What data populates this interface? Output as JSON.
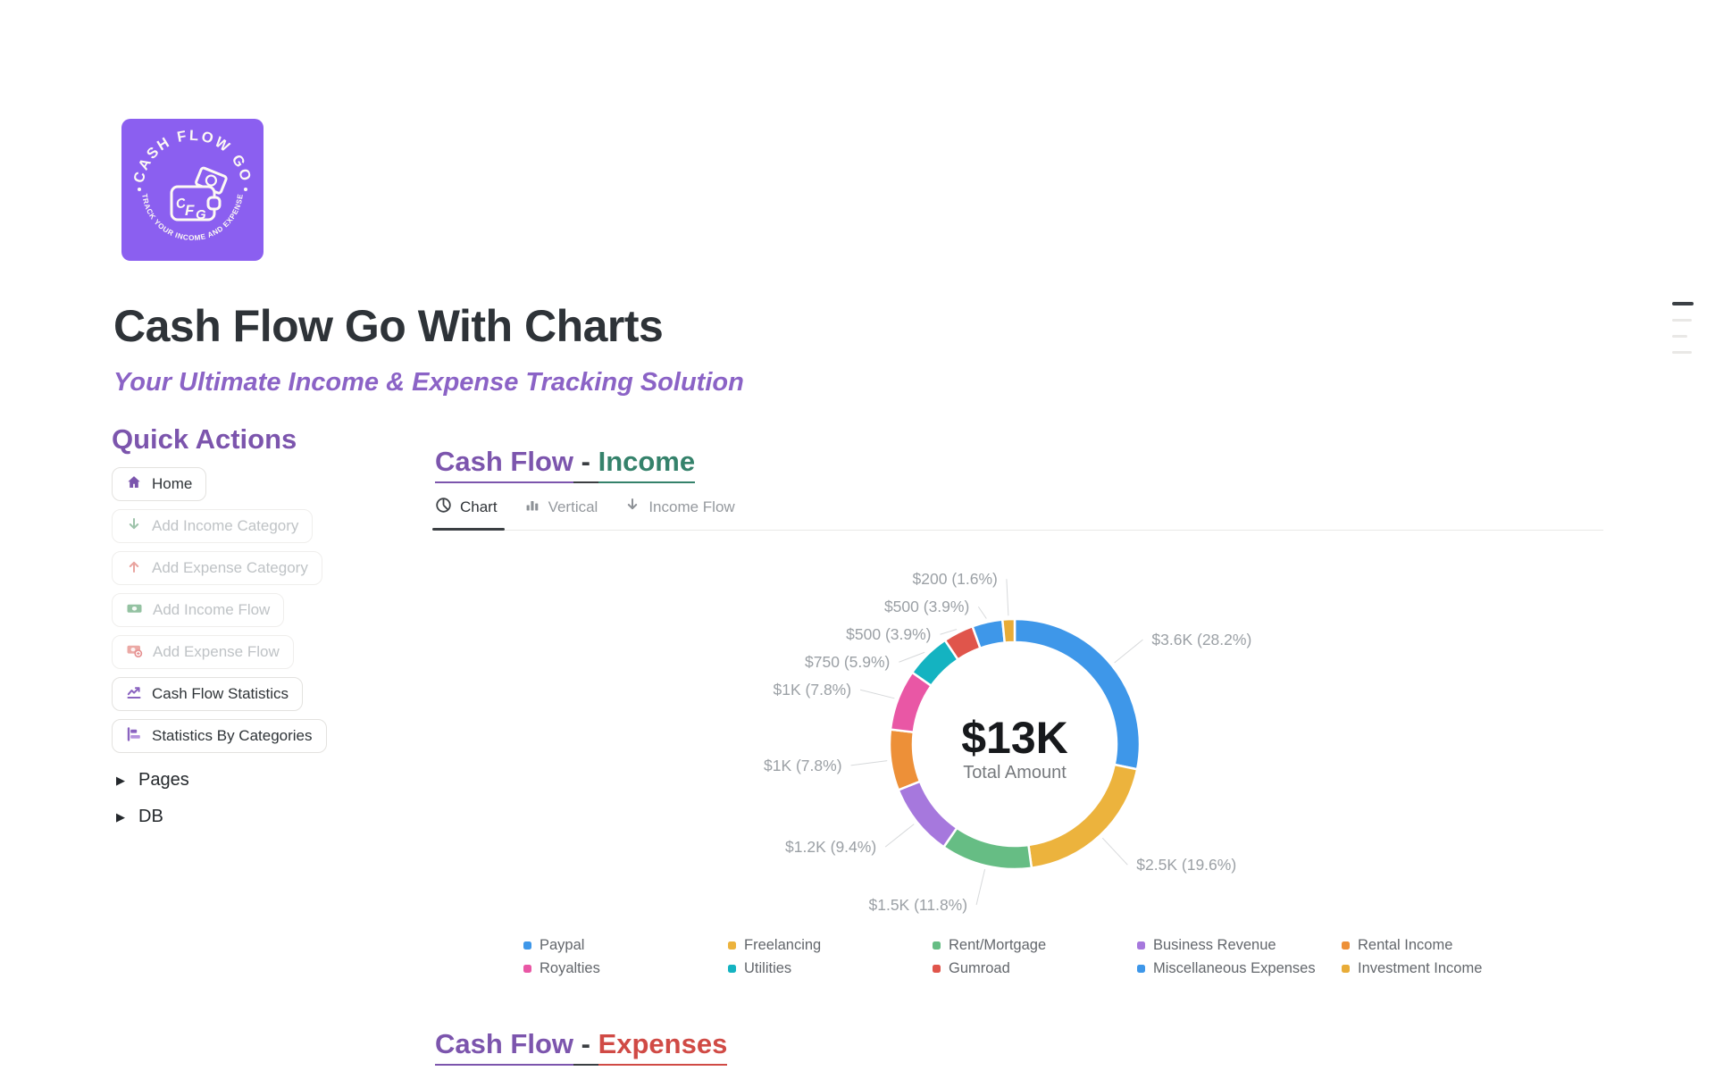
{
  "logo": {
    "arc_top": "CASH FLOW GO",
    "arc_bottom": "TRACK YOUR INCOME AND EXPENSE",
    "monogram": [
      "C",
      "F",
      "G"
    ],
    "bg_color": "#8b5ff0"
  },
  "header": {
    "title": "Cash Flow Go With Charts",
    "subtitle": "Your Ultimate Income & Expense Tracking Solution"
  },
  "quick_actions": {
    "heading": "Quick Actions",
    "buttons": [
      {
        "label": "Home",
        "icon": "home-icon",
        "enabled": true
      },
      {
        "label": "Add Income Category",
        "icon": "arrow-down-icon",
        "enabled": false
      },
      {
        "label": "Add Expense Category",
        "icon": "arrow-up-icon",
        "enabled": false
      },
      {
        "label": "Add Income Flow",
        "icon": "banknote-income-icon",
        "enabled": false
      },
      {
        "label": "Add Expense Flow",
        "icon": "banknote-expense-icon",
        "enabled": false
      },
      {
        "label": "Cash Flow Statistics",
        "icon": "line-chart-icon",
        "enabled": true
      },
      {
        "label": "Statistics By Categories",
        "icon": "bar-chart-horizontal-icon",
        "enabled": true
      }
    ],
    "toggles": [
      {
        "label": "Pages"
      },
      {
        "label": "DB"
      }
    ]
  },
  "income_section": {
    "heading": {
      "prefix": "Cash Flow",
      "separator": " - ",
      "suffix": "Income"
    },
    "tabs": [
      {
        "label": "Chart",
        "icon": "pie-chart-icon",
        "active": true
      },
      {
        "label": "Vertical",
        "icon": "bar-chart-vertical-icon",
        "active": false
      },
      {
        "label": "Income Flow",
        "icon": "arrow-down-icon",
        "active": false
      }
    ]
  },
  "chart_data": {
    "type": "pie",
    "variant": "donut",
    "title": "Cash Flow - Income",
    "center_value": "$13K",
    "center_label": "Total Amount",
    "legend_position": "bottom",
    "segments": [
      {
        "label": "Paypal",
        "value": 3600,
        "display": "$3.6K",
        "pct": "28.2%",
        "color": "#3e97e9"
      },
      {
        "label": "Freelancing",
        "value": 2500,
        "display": "$2.5K",
        "pct": "19.6%",
        "color": "#ecb33d"
      },
      {
        "label": "Rent/Mortgage",
        "value": 1500,
        "display": "$1.5K",
        "pct": "11.8%",
        "color": "#66bd84"
      },
      {
        "label": "Business Revenue",
        "value": 1200,
        "display": "$1.2K",
        "pct": "9.4%",
        "color": "#a678dd"
      },
      {
        "label": "Rental Income",
        "value": 1000,
        "display": "$1K",
        "pct": "7.8%",
        "color": "#ed9038"
      },
      {
        "label": "Royalties",
        "value": 1000,
        "display": "$1K",
        "pct": "7.8%",
        "color": "#e957a5"
      },
      {
        "label": "Utilities",
        "value": 750,
        "display": "$750",
        "pct": "5.9%",
        "color": "#14b3c1"
      },
      {
        "label": "Gumroad",
        "value": 500,
        "display": "$500",
        "pct": "3.9%",
        "color": "#e0554b"
      },
      {
        "label": "Miscellaneous Expenses",
        "value": 500,
        "display": "$500",
        "pct": "3.9%",
        "color": "#3e97e9"
      },
      {
        "label": "Investment Income",
        "value": 200,
        "display": "$200",
        "pct": "1.6%",
        "color": "#e8ac38"
      }
    ]
  },
  "expenses_section": {
    "heading": {
      "prefix": "Cash Flow",
      "separator": " - ",
      "suffix": "Expenses"
    }
  },
  "colors": {
    "accent_purple": "#7c55ad",
    "income_green": "#35826b",
    "expense_red": "#d04a45",
    "label_gray": "#9ba0a5"
  }
}
